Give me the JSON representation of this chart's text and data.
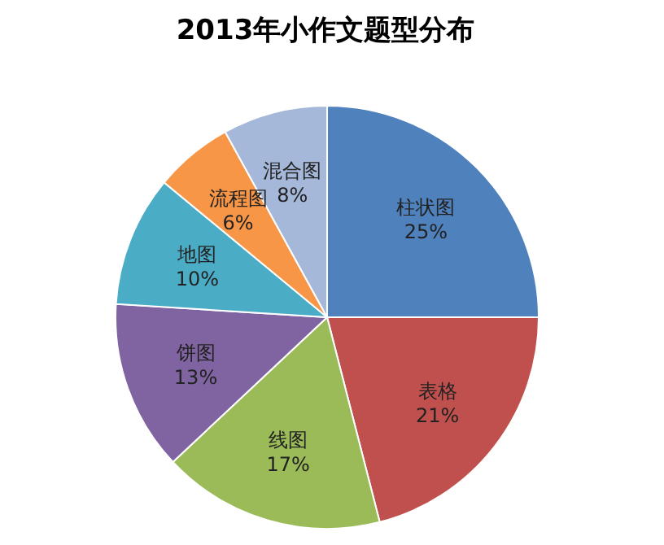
{
  "chart_data": {
    "type": "pie",
    "title": "2013年小作文题型分布",
    "categories": [
      "柱状图",
      "表格",
      "线图",
      "饼图",
      "地图",
      "流程图",
      "混合图"
    ],
    "values": [
      25,
      21,
      17,
      13,
      10,
      6,
      8
    ],
    "value_labels": [
      "25%",
      "21%",
      "17%",
      "13%",
      "10%",
      "6%",
      "8%"
    ],
    "colors": [
      "#4f81bd",
      "#c0504d",
      "#9bbb59",
      "#8064a2",
      "#4bacc6",
      "#f79646",
      "#a5b8d9"
    ],
    "legend": false
  }
}
